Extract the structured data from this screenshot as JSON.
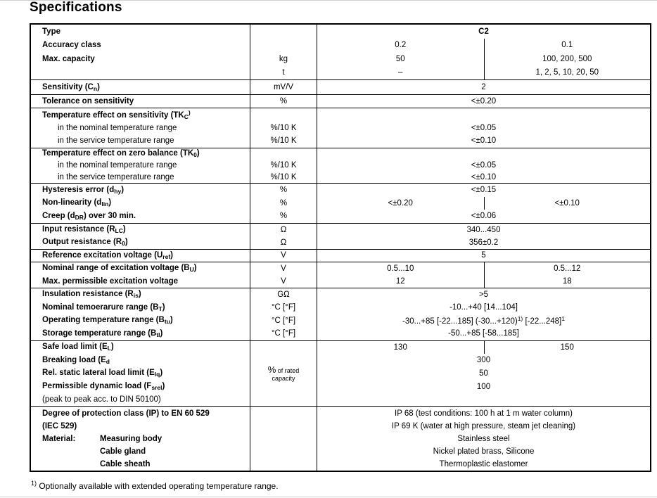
{
  "title": "Specifications",
  "footnote": {
    "sup": "1)",
    "text": " Optionally available with extended operating temperature range."
  },
  "table": {
    "bands": [
      {
        "lh": 19.5,
        "lines": [
          {
            "label": {
              "text": "Type",
              "bold": true
            },
            "unit": "",
            "value": {
              "full": "C2",
              "bold": true
            }
          },
          {
            "label": {
              "text": "Accuracy class",
              "bold": true
            },
            "unit": "",
            "value": {
              "left": "0.2",
              "right": "0.1",
              "divider": true
            }
          },
          {
            "label": {
              "text": "Max. capacity",
              "bold": true
            },
            "unit": "kg",
            "value": {
              "left": "50",
              "right": "100, 200, 500",
              "divider": true
            }
          },
          {
            "label": {
              "text": ""
            },
            "unit": "t",
            "value": {
              "left": "–",
              "right": "1, 2, 5, 10, 20, 50",
              "divider": true
            }
          }
        ]
      },
      {
        "lh": 20,
        "lines": [
          {
            "label": {
              "text": "Sensitivity (C_{n})",
              "bold": true
            },
            "unit": "mV/V",
            "value": {
              "full": "2"
            }
          }
        ]
      },
      {
        "lh": 18,
        "lines": [
          {
            "label": {
              "text": "Tolerance on sensitivity",
              "bold": true
            },
            "unit": "%",
            "value": {
              "full": "<±0.20"
            }
          }
        ]
      },
      {
        "lh": 18.5,
        "lines": [
          {
            "label": {
              "text": "Temperature effect on sensitivity (TK_{C}^{)}",
              "bold": true
            },
            "unit": "",
            "value": {
              "full": ""
            }
          },
          {
            "label": {
              "text": "in the nominal temperature range",
              "indent": true
            },
            "unit": "%/10 K",
            "value": {
              "full": "<±0.05"
            }
          },
          {
            "label": {
              "text": "in the service temperature range",
              "indent": true
            },
            "unit": "%/10 K",
            "value": {
              "full": "<±0.10"
            }
          }
        ]
      },
      {
        "lh": 16.5,
        "lines": [
          {
            "label": {
              "text": "Temperature effect on zero balance (TK_{0})",
              "bold": true
            },
            "unit": "",
            "value": {
              "full": ""
            }
          },
          {
            "label": {
              "text": "in the nominal temperature range",
              "indent": true
            },
            "unit": "%/10 K",
            "value": {
              "full": "<±0.05"
            }
          },
          {
            "label": {
              "text": "in the service temperature range",
              "indent": true
            },
            "unit": "%/10 K",
            "value": {
              "full": "<±0.10"
            }
          }
        ]
      },
      {
        "lh": 18.5,
        "lines": [
          {
            "label": {
              "text": "Hysteresis error (d_{hy})",
              "bold": true
            },
            "unit": "%",
            "value": {
              "full": "<±0.15"
            }
          },
          {
            "label": {
              "text": "Non-linearity (d_{lin})",
              "bold": true
            },
            "unit": "%",
            "value": {
              "left": "<±0.20",
              "right": "<±0.10",
              "divider": true
            }
          },
          {
            "label": {
              "text": "Creep (d_{DR}) over 30 min.",
              "bold": true
            },
            "unit": "%",
            "value": {
              "full": "<±0.06"
            }
          }
        ]
      },
      {
        "lh": 18,
        "lines": [
          {
            "label": {
              "text": "Input resistance (R_{LC})",
              "bold": true
            },
            "unit": "Ω",
            "value": {
              "full": "340...450"
            }
          },
          {
            "label": {
              "text": "Output resistance (R_{0})",
              "bold": true
            },
            "unit": "Ω",
            "value": {
              "full": "356±0.2"
            }
          }
        ]
      },
      {
        "lh": 17,
        "lines": [
          {
            "label": {
              "text": "Reference excitation voltage (U_{ref})",
              "bold": true
            },
            "unit": "V",
            "value": {
              "full": "5"
            }
          }
        ]
      },
      {
        "lh": 18,
        "lines": [
          {
            "label": {
              "text": "Nominal range of excitation voltage (B_{U})",
              "bold": true
            },
            "unit": "V",
            "value": {
              "left": "0.5...10",
              "right": "0.5...12",
              "divider": true
            }
          },
          {
            "label": {
              "text": "Max. permissible excitation voltage",
              "bold": true
            },
            "unit": "V",
            "value": {
              "left": "12",
              "right": "18",
              "divider": true
            }
          }
        ]
      },
      {
        "lh": 18.5,
        "lines": [
          {
            "label": {
              "text": "Insulation resistance (R_{is})",
              "bold": true
            },
            "unit": "GΩ",
            "value": {
              "full": ">5"
            }
          },
          {
            "label": {
              "text": "Nominal temoerarure range (B_{T})",
              "bold": true
            },
            "unit": "°C [°F]",
            "value": {
              "full": "-10...+40 [14...104]"
            }
          },
          {
            "label": {
              "text": "Operating temperature range (B_{tu})",
              "bold": true
            },
            "unit": "°C [°F]",
            "value": {
              "full": "-30...+85 [-22...185] (-30...+120)^{1)} [-22...248]^{1}"
            }
          },
          {
            "label": {
              "text": "Storage temperature range (B_{tl})",
              "bold": true
            },
            "unit": "°C [°F]",
            "value": {
              "full": "-50...+85 [-58...185]"
            }
          }
        ]
      },
      {
        "lh": 18.6,
        "unit_center": {
          "big": "%",
          "small1": "of rated",
          "small2": "capacity"
        },
        "lines": [
          {
            "label": {
              "text": "Safe load limit (E_{L})",
              "bold": true
            },
            "value": {
              "left": "130",
              "right": "150",
              "divider": true
            }
          },
          {
            "label": {
              "text": "Breaking load (E_{d}",
              "bold": true
            },
            "value": {
              "full": "300"
            }
          },
          {
            "label": {
              "text": "Rel. static lateral load limit (E_{lq})",
              "bold": true
            },
            "value": {
              "full": "50"
            }
          },
          {
            "label": {
              "text": "Permissible dynamic load (F_{srel})",
              "bold": true
            },
            "value": {
              "full": "100"
            }
          },
          {
            "label": {
              "text": "(peak to peak acc. to DIN 50100)"
            },
            "value": {
              "full": ""
            }
          }
        ]
      },
      {
        "lh": 18.2,
        "lines": [
          {
            "label": {
              "text": "Degree of protection class (IP) to EN 60 529",
              "bold": true
            },
            "unit": "",
            "value": {
              "full": "IP 68 (test conditions: 100 h at 1 m water column)"
            }
          },
          {
            "label": {
              "text": "(IEC 529)",
              "bold": true
            },
            "unit": "",
            "value": {
              "full": "IP 69 K (water at high pressure, steam jet cleaning)"
            }
          },
          {
            "label": {
              "cols": [
                "Material:",
                "Measuring body"
              ],
              "bold": true
            },
            "unit": "",
            "value": {
              "full": "Stainless steel"
            }
          },
          {
            "label": {
              "cols": [
                "",
                "Cable gland"
              ],
              "bold": true
            },
            "unit": "",
            "value": {
              "full": "Nickel plated brass, Silicone"
            }
          },
          {
            "label": {
              "cols": [
                "",
                "Cable sheath"
              ],
              "bold": true
            },
            "unit": "",
            "value": {
              "full": "Thermoplastic elastomer"
            }
          }
        ]
      }
    ]
  }
}
